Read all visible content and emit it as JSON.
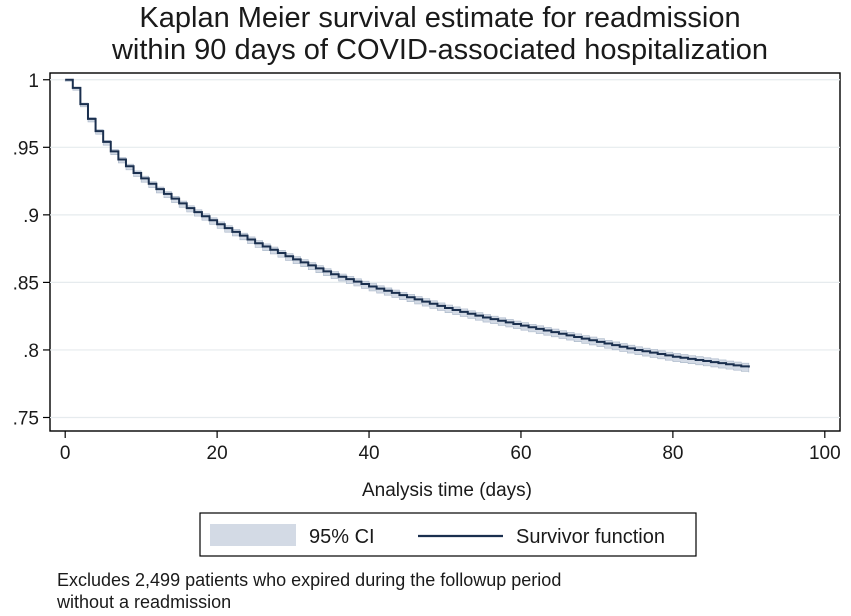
{
  "chart_data": {
    "type": "line",
    "title_lines": [
      "Kaplan Meier survival estimate for readmission",
      "within 90 days of COVID-associated hospitalization"
    ],
    "xlabel": "Analysis time (days)",
    "ylabel": "",
    "xlim": [
      -2,
      102
    ],
    "ylim": [
      0.74,
      1.005
    ],
    "x_ticks": [
      0,
      20,
      40,
      60,
      80,
      100
    ],
    "x_tick_labels": [
      "0",
      "20",
      "40",
      "60",
      "80",
      "100"
    ],
    "y_ticks": [
      1,
      0.95,
      0.9,
      0.85,
      0.8,
      0.75
    ],
    "y_tick_labels": [
      "1",
      ".95",
      ".9",
      ".85",
      ".8",
      ".75"
    ],
    "grid": "horizontal",
    "series": [
      {
        "name": "Survivor function",
        "style": "step",
        "color": "#1a2f4e",
        "x": [
          0,
          1,
          2,
          3,
          4,
          5,
          6,
          7,
          8,
          9,
          10,
          12,
          14,
          16,
          18,
          20,
          25,
          30,
          35,
          40,
          45,
          50,
          55,
          60,
          65,
          70,
          75,
          80,
          85,
          90
        ],
        "y": [
          1.0,
          0.994,
          0.982,
          0.971,
          0.962,
          0.954,
          0.947,
          0.941,
          0.936,
          0.931,
          0.927,
          0.919,
          0.912,
          0.905,
          0.899,
          0.893,
          0.879,
          0.867,
          0.856,
          0.847,
          0.839,
          0.831,
          0.824,
          0.818,
          0.812,
          0.806,
          0.8,
          0.795,
          0.791,
          0.787
        ]
      }
    ],
    "ci_band": {
      "name": "95% CI",
      "color": "#d3dae5",
      "halfwidth": [
        0.0,
        0.0005,
        0.0008,
        0.001,
        0.0011,
        0.0012,
        0.0013,
        0.0014,
        0.0015,
        0.0015,
        0.0016,
        0.0016,
        0.0017,
        0.0017,
        0.0018,
        0.0018,
        0.0019,
        0.002,
        0.002,
        0.0021,
        0.0021,
        0.0022,
        0.0022,
        0.0022,
        0.0023,
        0.0023,
        0.0023,
        0.0024,
        0.0024,
        0.0024
      ]
    },
    "legend": {
      "position": "bottom",
      "entries": [
        "95% CI",
        "Survivor function"
      ]
    },
    "note_lines": [
      "Excludes 2,499 patients who expired during the followup period",
      "without a readmission"
    ]
  }
}
